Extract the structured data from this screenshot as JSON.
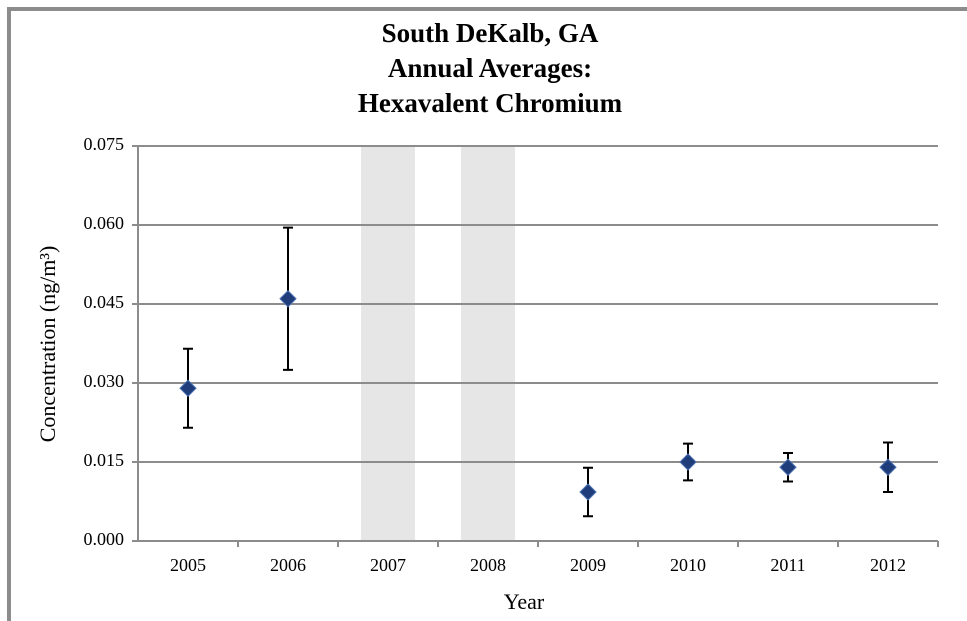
{
  "chart_data": {
    "type": "errorbar",
    "title": [
      "South DeKalb, GA",
      "Annual Averages:",
      "Hexavalent Chromium"
    ],
    "x_label": "Year",
    "y_label": "Concentration (ng/m³)",
    "categories": [
      "2005",
      "2006",
      "2007",
      "2008",
      "2009",
      "2010",
      "2011",
      "2012"
    ],
    "values": [
      0.029,
      0.046,
      null,
      null,
      0.0093,
      0.015,
      0.014,
      0.014
    ],
    "errors": [
      0.0075,
      0.0135,
      null,
      null,
      0.0046,
      0.0035,
      0.0027,
      0.0047
    ],
    "color": "#1f3d7a",
    "ylim": [
      0,
      0.075
    ],
    "yticks": [
      {
        "value": 0,
        "label": "0.000"
      },
      {
        "value": 0.015,
        "label": "0.015"
      },
      {
        "value": 0.03,
        "label": "0.030"
      },
      {
        "value": 0.045,
        "label": "0.045"
      },
      {
        "value": 0.06,
        "label": "0.060"
      },
      {
        "value": 0.075,
        "label": "0.075"
      }
    ],
    "grid": true
  }
}
